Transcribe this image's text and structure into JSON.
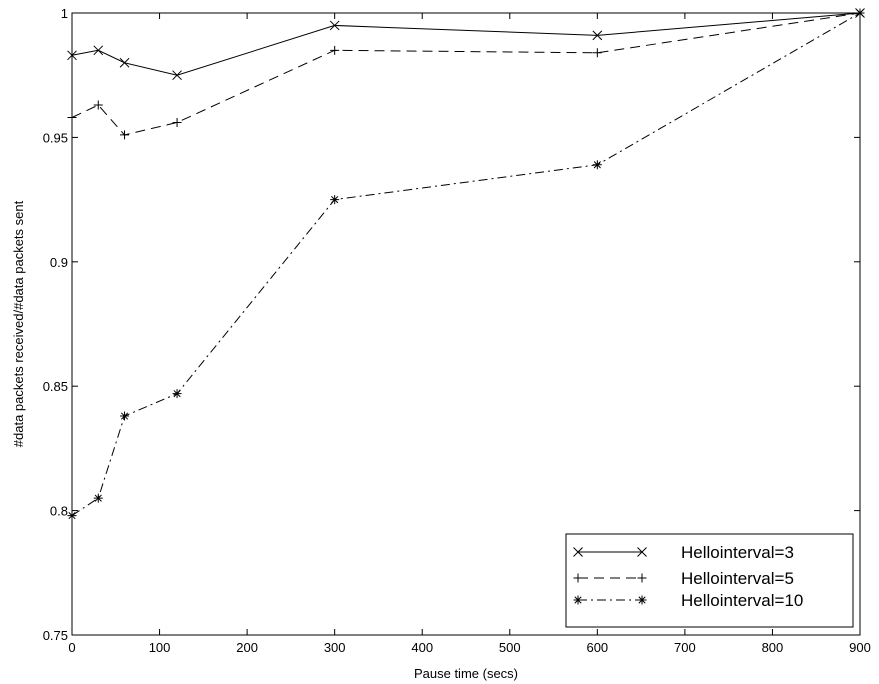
{
  "chart_data": {
    "type": "line",
    "title": "",
    "xlabel": "Pause time (secs)",
    "ylabel": "#data packets received/#data packets sent",
    "xlim": [
      0,
      900
    ],
    "ylim": [
      0.75,
      1
    ],
    "xticks": [
      0,
      100,
      200,
      300,
      400,
      500,
      600,
      700,
      800,
      900
    ],
    "yticks": [
      0.75,
      0.8,
      0.85,
      0.9,
      0.95,
      1
    ],
    "xtick_labels": [
      "0",
      "100",
      "200",
      "300",
      "400",
      "500",
      "600",
      "700",
      "800",
      "900"
    ],
    "ytick_labels": [
      "0.75",
      "0.8",
      "0.85",
      "0.9",
      "0.95",
      "1"
    ],
    "grid": false,
    "legend_position": "bottom-right",
    "x": [
      0,
      30,
      60,
      120,
      300,
      600,
      900
    ],
    "series": [
      {
        "name": "Hellointerval=3",
        "marker": "x",
        "dash": "solid",
        "values": [
          0.983,
          0.985,
          0.98,
          0.975,
          0.995,
          0.991,
          1.0
        ]
      },
      {
        "name": "Hellointerval=5",
        "marker": "+",
        "dash": "dashed",
        "values": [
          0.958,
          0.963,
          0.951,
          0.956,
          0.985,
          0.984,
          1.0
        ]
      },
      {
        "name": "Hellointerval=10",
        "marker": "*",
        "dash": "dash-dot",
        "values": [
          0.798,
          0.805,
          0.838,
          0.847,
          0.925,
          0.939,
          1.0
        ]
      }
    ]
  }
}
